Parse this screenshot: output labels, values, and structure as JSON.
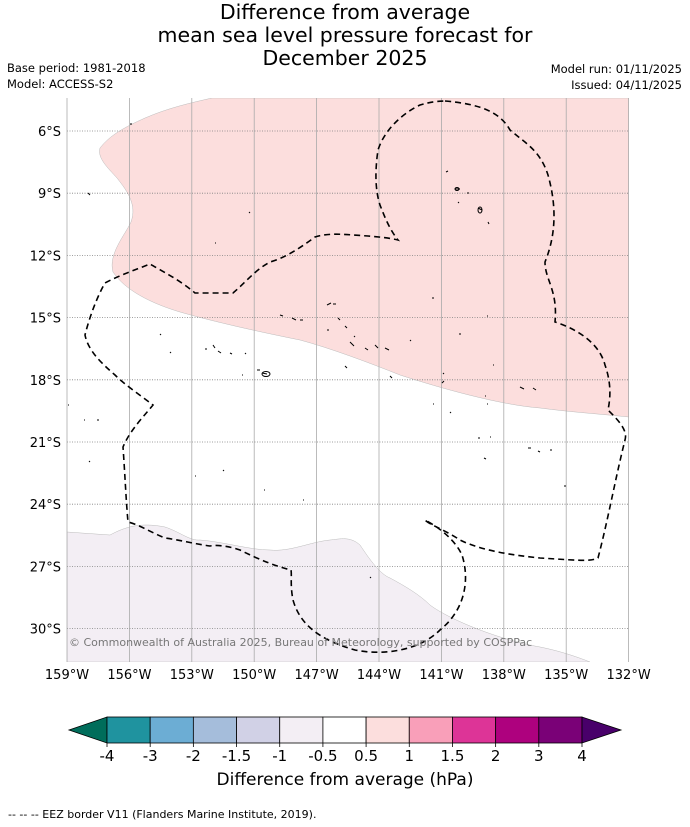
{
  "title": {
    "line1": "Difference from average",
    "line2": "mean sea level pressure forecast for",
    "line3": "December 2025"
  },
  "meta_left": {
    "base_period": "Base period: 1981-2018",
    "model": "Model: ACCESS-S2"
  },
  "meta_right": {
    "model_run": "Model run: 01/11/2025",
    "issued": "Issued: 04/11/2025"
  },
  "map": {
    "lat_ticks": [
      "6°S",
      "9°S",
      "12°S",
      "15°S",
      "18°S",
      "21°S",
      "24°S",
      "27°S",
      "30°S"
    ],
    "lon_ticks": [
      "159°W",
      "156°W",
      "153°W",
      "150°W",
      "147°W",
      "144°W",
      "141°W",
      "138°W",
      "135°W",
      "132°W"
    ],
    "copyright": "© Commonwealth of Australia 2025, Bureau of Meteorology, supported by COSPPac",
    "colors": {
      "positive_anomaly": "#fcdedd",
      "negative_anomaly": "#f3eef4",
      "gridline": "#808080",
      "eez": "#000000"
    }
  },
  "colorbar": {
    "title": "Difference from average (hPa)",
    "tick_labels": [
      "-4",
      "-3",
      "-2",
      "-1.5",
      "-1",
      "-0.5",
      "0.5",
      "1",
      "1.5",
      "2",
      "3",
      "4"
    ],
    "colors": [
      "#006d5b",
      "#1f939f",
      "#6cadd4",
      "#a5bddb",
      "#d1d1e6",
      "#f3eef4",
      "#ffffff",
      "#fcdedd",
      "#f99fb9",
      "#dd3497",
      "#ae017e",
      "#7a0177",
      "#49006a"
    ]
  },
  "footer": "-- -- -- EEZ border V11 (Flanders Marine Institute, 2019)."
}
